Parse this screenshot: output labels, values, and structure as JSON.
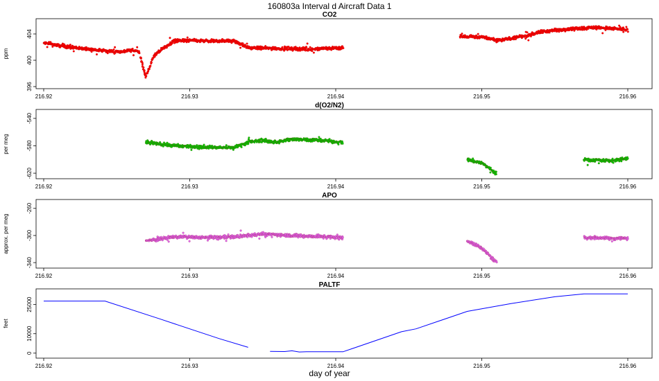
{
  "title": "160803a   Interval d Aircraft Data 1",
  "xlabel": "day of year",
  "chart_data": [
    {
      "type": "scatter",
      "title": "CO2",
      "ylabel": "ppm",
      "xlim": [
        216.92,
        216.96
      ],
      "ylim": [
        396,
        406
      ],
      "yticks": [
        396,
        400,
        404
      ],
      "xticks": [
        "216.92",
        "216.93",
        "216.94",
        "216.95",
        "216.96"
      ],
      "color": "#ff0000",
      "segments": [
        {
          "x": [
            216.92,
            216.9225,
            216.925,
            216.9265,
            216.9268,
            216.927,
            216.9275,
            216.928,
            216.929,
            216.93,
            216.9315,
            216.933,
            216.934,
            216.936,
            216.938,
            216.9405
          ],
          "y": [
            402.6,
            401.8,
            401.3,
            401.5,
            399.0,
            397.5,
            400.5,
            401.5,
            403.0,
            403.0,
            402.9,
            403.0,
            401.9,
            401.8,
            401.7,
            401.9
          ]
        },
        {
          "x": [
            216.9485,
            216.95,
            216.951,
            216.953,
            216.954,
            216.956,
            216.958,
            216.96
          ],
          "y": [
            403.6,
            403.6,
            403.0,
            403.7,
            404.3,
            404.8,
            405.0,
            404.6
          ]
        }
      ]
    },
    {
      "type": "scatter",
      "title": "d(O2/N2)",
      "ylabel": "per meg",
      "xlim": [
        216.92,
        216.96
      ],
      "ylim": [
        -625,
        -530
      ],
      "yticks": [
        -620,
        -580,
        -540
      ],
      "xticks": [
        "216.92",
        "216.93",
        "216.94",
        "216.95",
        "216.96"
      ],
      "color": "#00cc00",
      "segments": [
        {
          "x": [
            216.927,
            216.929,
            216.931,
            216.933,
            216.934,
            216.935,
            216.936,
            216.937,
            216.939,
            216.9405
          ],
          "y": [
            -575,
            -580,
            -582,
            -583,
            -575,
            -572,
            -575,
            -570,
            -572,
            -575
          ]
        },
        {
          "x": [
            216.949,
            216.95,
            216.951
          ],
          "y": [
            -600,
            -605,
            -620
          ]
        },
        {
          "x": [
            216.957,
            216.959,
            216.96
          ],
          "y": [
            -600,
            -602,
            -598
          ]
        }
      ]
    },
    {
      "type": "scatter",
      "title": "APO",
      "ylabel": "approx. per meg",
      "xlim": [
        216.92,
        216.96
      ],
      "ylim": [
        -345,
        -250
      ],
      "yticks": [
        -340,
        -300,
        -260
      ],
      "xticks": [
        "216.92",
        "216.93",
        "216.94",
        "216.95",
        "216.96"
      ],
      "color": "#dd66ee",
      "segments": [
        {
          "x": [
            216.927,
            216.929,
            216.931,
            216.933,
            216.935,
            216.937,
            216.9405
          ],
          "y": [
            -308,
            -302,
            -303,
            -302,
            -298,
            -300,
            -303
          ]
        },
        {
          "x": [
            216.949,
            216.95,
            216.951
          ],
          "y": [
            -308,
            -318,
            -340
          ]
        },
        {
          "x": [
            216.957,
            216.959,
            216.96
          ],
          "y": [
            -303,
            -304,
            -304
          ]
        }
      ]
    },
    {
      "type": "line",
      "title": "PALTF",
      "ylabel": "feet",
      "xlim": [
        216.92,
        216.96
      ],
      "ylim": [
        -1500,
        32000
      ],
      "yticks": [
        0,
        10000,
        25000
      ],
      "xticks": [
        "216.92",
        "216.93",
        "216.94",
        "216.95",
        "216.96"
      ],
      "color": "#0000ff",
      "segments": [
        {
          "x": [
            216.92,
            216.9242,
            216.928,
            216.932,
            216.934
          ],
          "y": [
            26800,
            26800,
            17500,
            7500,
            3000
          ]
        },
        {
          "x": [
            216.9355,
            216.9365,
            216.937,
            216.9375,
            216.938,
            216.9405,
            216.9445,
            216.9455,
            216.949,
            216.952,
            216.955,
            216.957,
            216.96
          ],
          "y": [
            900,
            800,
            1200,
            600,
            700,
            700,
            11000,
            12500,
            21500,
            25500,
            29000,
            30500,
            30500
          ]
        }
      ]
    }
  ]
}
